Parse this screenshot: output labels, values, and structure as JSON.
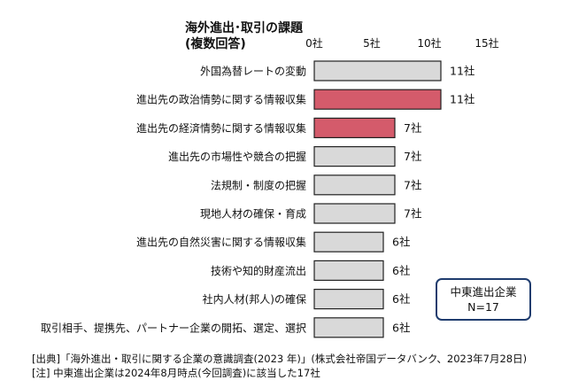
{
  "chart_data": {
    "type": "bar",
    "orientation": "horizontal",
    "title_line1": "海外進出･取引の課題",
    "title_line2": "(複数回答)",
    "tick_labels": [
      "0社",
      "5社",
      "10社",
      "15社"
    ],
    "xlim": [
      0,
      15
    ],
    "categories": [
      "外国為替レートの変動",
      "進出先の政治情勢に関する情報収集",
      "進出先の経済情勢に関する情報収集",
      "進出先の市場性や競合の把握",
      "法規制・制度の把握",
      "現地人材の確保・育成",
      "進出先の自然災害に関する情報収集",
      "技術や知的財産流出",
      "社内人材(邦人)の確保",
      "取引相手、提携先、パートナー企業の開拓、選定、選択"
    ],
    "values": [
      11,
      11,
      7,
      7,
      7,
      7,
      6,
      6,
      6,
      6
    ],
    "value_labels": [
      "11社",
      "11社",
      "7社",
      "7社",
      "7社",
      "7社",
      "6社",
      "6社",
      "6社",
      "6社"
    ],
    "highlighted": [
      false,
      true,
      true,
      false,
      false,
      false,
      false,
      false,
      false,
      false
    ],
    "colors": {
      "bar": "#d9d9d9",
      "highlight": "#d45b6b",
      "bar_stroke": "#222222",
      "box_border": "#1f3c6e"
    },
    "grid": false
  },
  "legend_box": {
    "line1": "中東進出企業",
    "line2": "N=17"
  },
  "notes": {
    "source": "[出典]「海外進出・取引に関する企業の意識調査(2023 年)」(株式会社帝国データバンク、2023年7月28日)",
    "note": "[注] 中東進出企業は2024年8月時点(今回調査)に該当した17社"
  }
}
